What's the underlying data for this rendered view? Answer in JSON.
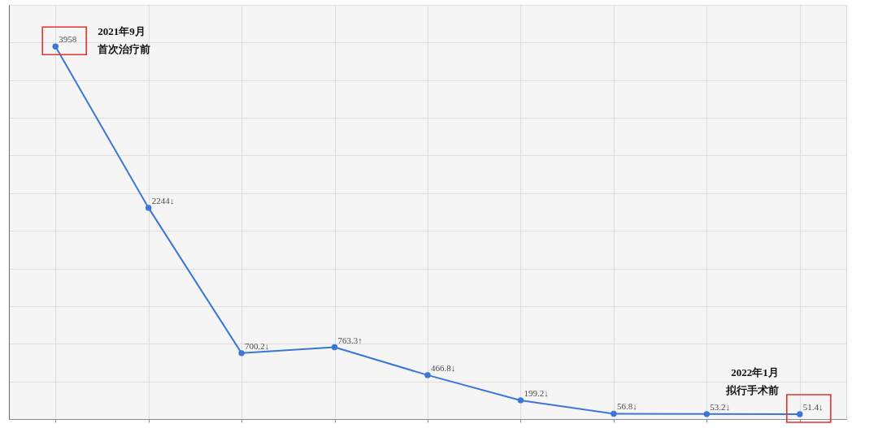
{
  "chart_data": {
    "type": "line",
    "categories": [
      null,
      null,
      null,
      null,
      null,
      null,
      null,
      null,
      null
    ],
    "values": [
      3958,
      2244,
      700.2,
      763.3,
      466.8,
      199.2,
      56.8,
      53.2,
      51.4
    ],
    "value_labels": [
      "3958",
      "2244↓",
      "700.2↓",
      "763.3↑",
      "466.8↓",
      "199.2↓",
      "56.8↓",
      "53.2↓",
      "51.4↓"
    ],
    "color": "#3a76d6",
    "marker": "circle",
    "line_style": "solid",
    "ylim": [
      0,
      4400
    ],
    "yticks": [
      {
        "value": 0,
        "label": null
      },
      {
        "value": 400,
        "label": null
      },
      {
        "value": 800,
        "label": null
      },
      {
        "value": 1200,
        "label": null
      },
      {
        "value": 1600,
        "label": null
      },
      {
        "value": 2000,
        "label": null
      },
      {
        "value": 2400,
        "label": null
      },
      {
        "value": 2800,
        "label": null
      },
      {
        "value": 3200,
        "label": null
      },
      {
        "value": 3600,
        "label": null
      },
      {
        "value": 4000,
        "label": null
      },
      {
        "value": 4400,
        "label": null
      }
    ],
    "grid": true,
    "annotations": [
      "2021年9月首次治疗前",
      "2022年1月拟行手术前"
    ]
  }
}
